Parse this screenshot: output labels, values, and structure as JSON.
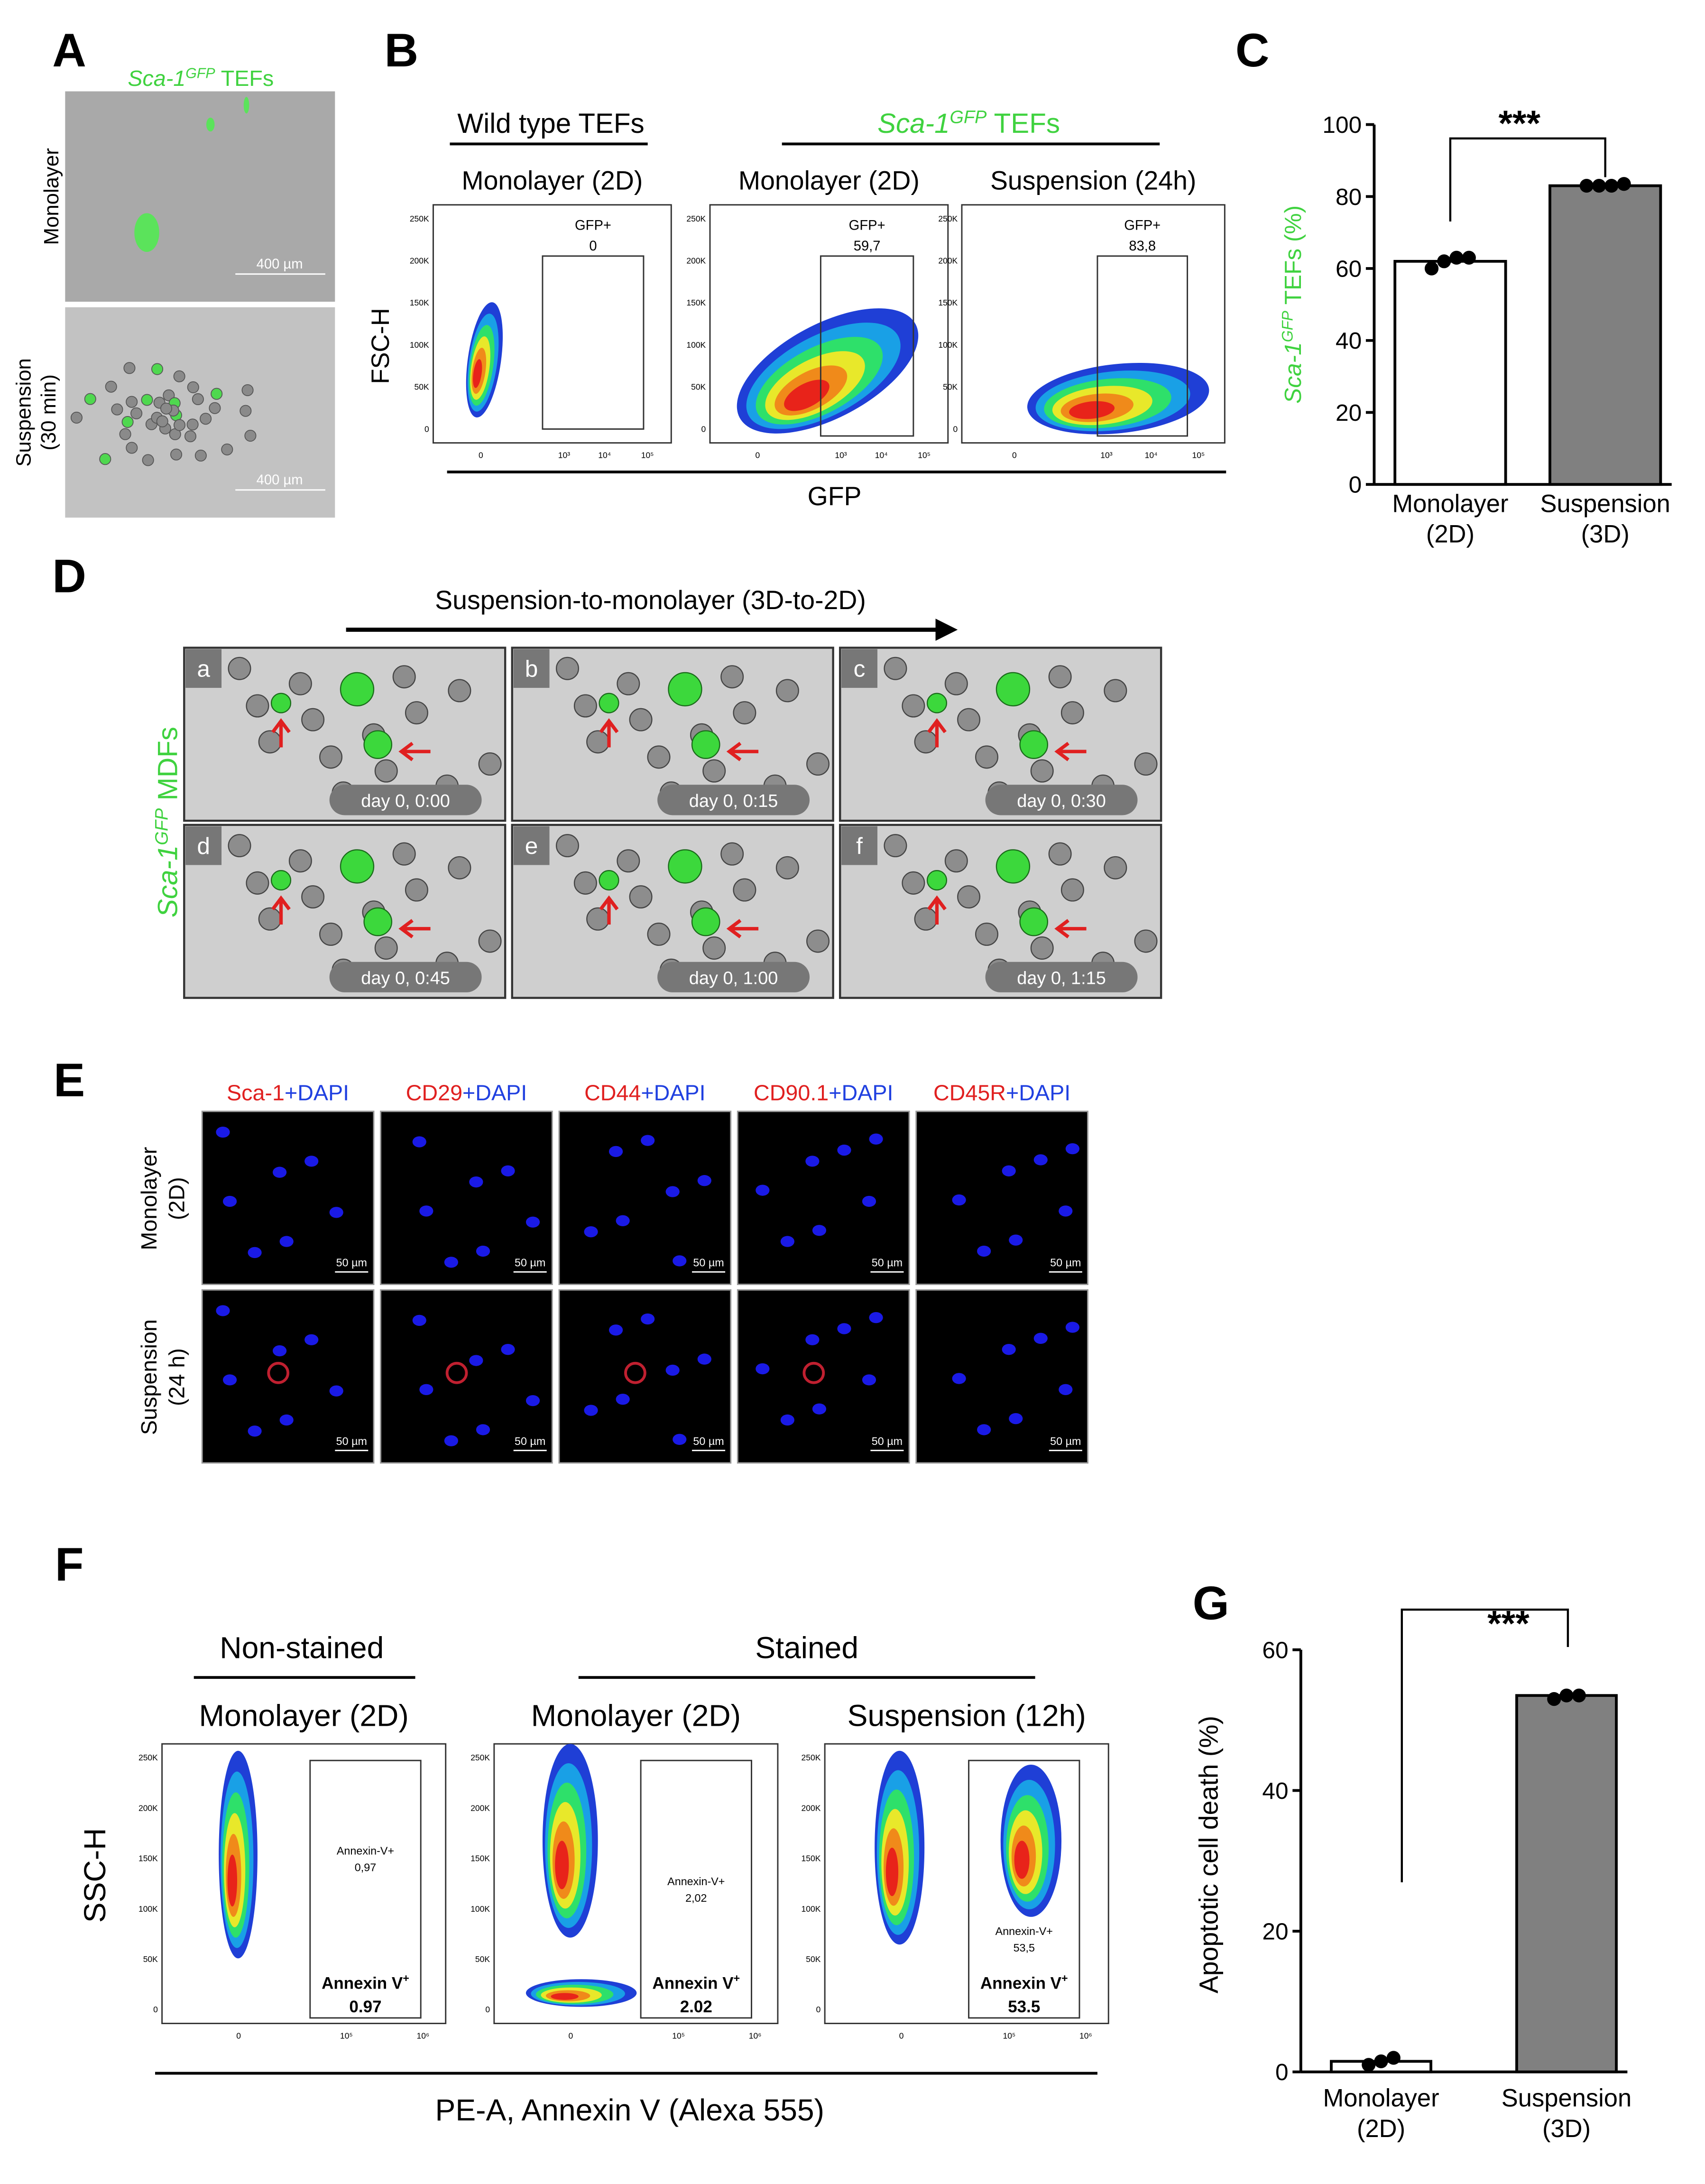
{
  "panels": {
    "A": {
      "letter": "A",
      "title": {
        "name": "Sca-1",
        "sup": "GFP",
        "rest": " TEFs"
      },
      "rows": [
        [
          "Monolayer"
        ],
        [
          "Suspension",
          "(30 min)"
        ]
      ],
      "scale_bar": "400 µm"
    },
    "B": {
      "letter": "B",
      "groups": [
        {
          "name": "Wild type TEFs"
        },
        {
          "name": "Sca-1",
          "sup": "GFP",
          "rest": " TEFs"
        }
      ],
      "plots": [
        {
          "condition": "Monolayer (2D)",
          "gate": "GFP+",
          "value": "0"
        },
        {
          "condition": "Monolayer (2D)",
          "gate": "GFP+",
          "value": "59,7"
        },
        {
          "condition": "Suspension (24h)",
          "gate": "GFP+",
          "value": "83,8"
        }
      ],
      "y_label": "FSC-H",
      "x_label": "GFP",
      "y_tick_labels": [
        "250K",
        "200K",
        "150K",
        "100K",
        "50K",
        "0"
      ],
      "x_tick_labels": [
        "0",
        "10³",
        "10⁴",
        "10⁵"
      ]
    },
    "D": {
      "letter": "D",
      "header": "Suspension-to-monolayer (3D-to-2D)",
      "side_label": {
        "name": "Sca-1",
        "sup": "GFP",
        "rest": " MDFs"
      },
      "frames": [
        {
          "id": "a",
          "time": "day 0, 0:00"
        },
        {
          "id": "b",
          "time": "day 0, 0:15"
        },
        {
          "id": "c",
          "time": "day 0, 0:30"
        },
        {
          "id": "d",
          "time": "day 0, 0:45"
        },
        {
          "id": "e",
          "time": "day 0, 1:00"
        },
        {
          "id": "f",
          "time": "day 0, 1:15"
        }
      ]
    },
    "E": {
      "letter": "E",
      "columns": [
        {
          "marker": "Sca-1",
          "stain": "+DAPI"
        },
        {
          "marker": "CD29",
          "stain": "+DAPI"
        },
        {
          "marker": "CD44",
          "stain": "+DAPI"
        },
        {
          "marker": "CD90.1",
          "stain": "+DAPI"
        },
        {
          "marker": "CD45R",
          "stain": "+DAPI"
        }
      ],
      "rows": [
        [
          "Monolayer",
          "(2D)"
        ],
        [
          "Suspension",
          "(24 h)"
        ]
      ],
      "scale_bar": "50 µm"
    },
    "F": {
      "letter": "F",
      "groups": [
        "Non-stained",
        "Stained"
      ],
      "plots": [
        {
          "condition": "Monolayer (2D)",
          "gate_small": "Annexin-V+",
          "value_small": "0,97",
          "gate": "Annexin V",
          "gate_sup": "+",
          "value": "0.97"
        },
        {
          "condition": "Monolayer (2D)",
          "gate_small": "Annexin-V+",
          "value_small": "2,02",
          "gate": "Annexin V",
          "gate_sup": "+",
          "value": "2.02"
        },
        {
          "condition": "Suspension (12h)",
          "gate_small": "Annexin-V+",
          "value_small": "53,5",
          "gate": "Annexin V",
          "gate_sup": "+",
          "value": "53.5"
        }
      ],
      "y_label": "SSC-H",
      "x_label": "PE-A, Annexin V (Alexa 555)",
      "y_tick_labels": [
        "250K",
        "200K",
        "150K",
        "100K",
        "50K",
        "0"
      ],
      "x_tick_labels": [
        "0",
        "10⁵",
        "10⁶"
      ]
    }
  },
  "chart_data": [
    {
      "type": "bar",
      "letter": "C",
      "y_label": {
        "name": "Sca-1",
        "sup": "GFP",
        "rest": " TEFs (%)"
      },
      "categories": [
        [
          "Monolayer",
          "(2D)"
        ],
        [
          "Suspension",
          "(3D)"
        ]
      ],
      "values": [
        62,
        83
      ],
      "points": [
        [
          60,
          62,
          63,
          63
        ],
        [
          83,
          83,
          83,
          83.5
        ]
      ],
      "colors": [
        "#ffffff",
        "#808080"
      ],
      "ylim": [
        0,
        100
      ],
      "yticks": [
        0,
        20,
        40,
        60,
        80,
        100
      ],
      "significance": "***"
    },
    {
      "type": "bar",
      "letter": "G",
      "y_label": "Apoptotic cell death (%)",
      "categories": [
        [
          "Monolayer",
          "(2D)"
        ],
        [
          "Suspension",
          "(3D)"
        ]
      ],
      "values": [
        1.5,
        53.5
      ],
      "points": [
        [
          1,
          1.5,
          2
        ],
        [
          53,
          53.5,
          53.5
        ]
      ],
      "colors": [
        "#ffffff",
        "#808080"
      ],
      "ylim": [
        0,
        60
      ],
      "yticks": [
        0,
        20,
        40,
        60
      ],
      "significance": "***"
    }
  ]
}
